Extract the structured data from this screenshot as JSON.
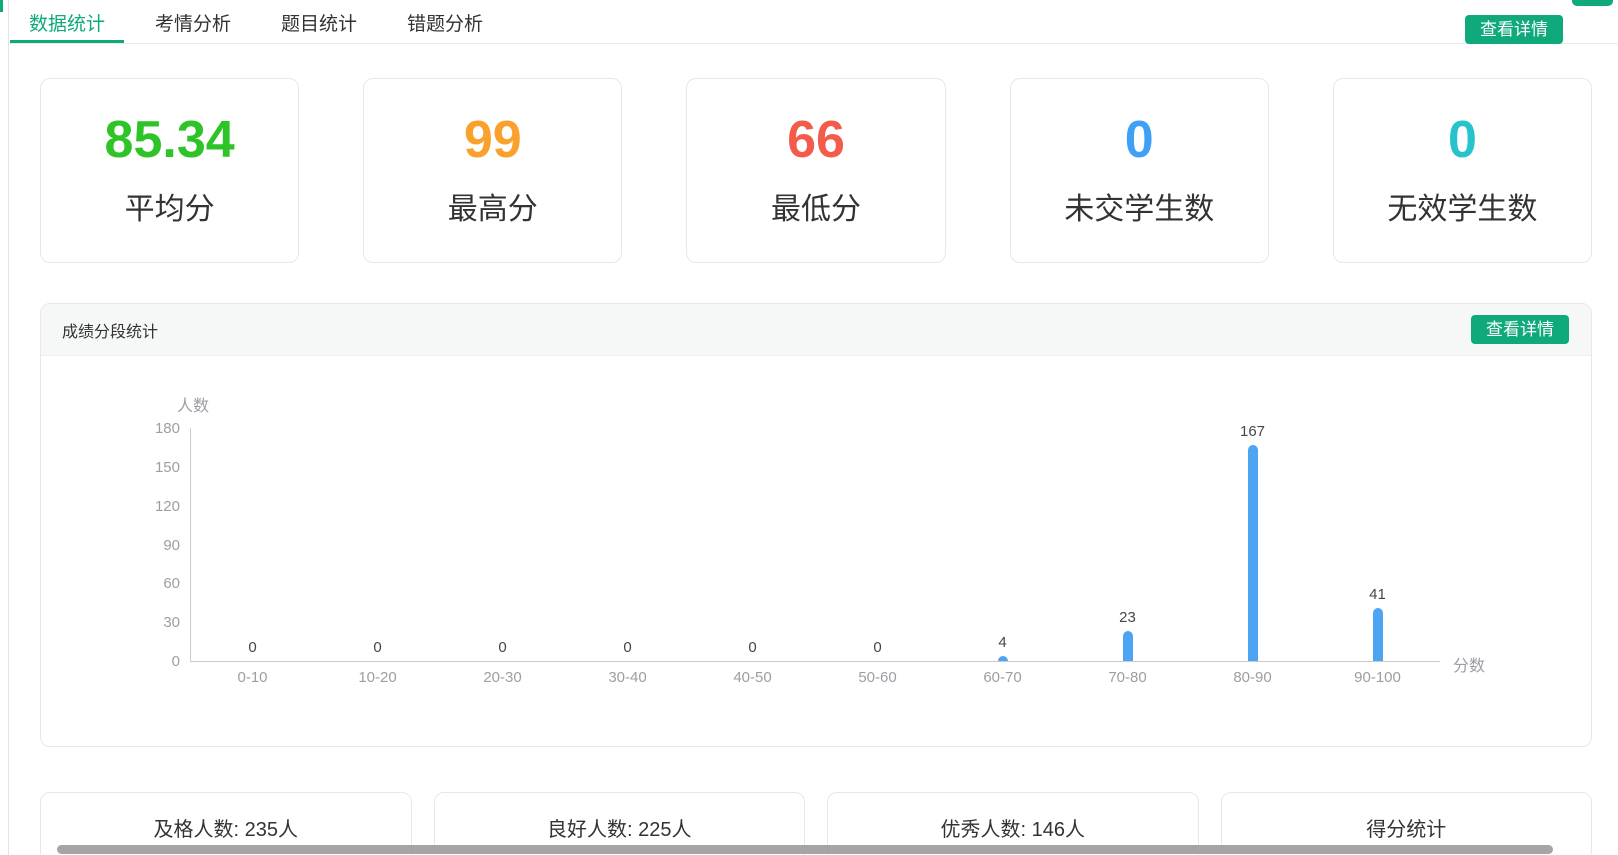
{
  "colors": {
    "accent_green": "#10A97C",
    "bar_blue": "#4DA4F2"
  },
  "tabs": [
    {
      "id": "data-statistics",
      "label": "数据统计",
      "active": true
    },
    {
      "id": "exam-analysis",
      "label": "考情分析",
      "active": false
    },
    {
      "id": "question-stats",
      "label": "题目统计",
      "active": false
    },
    {
      "id": "wrong-question-analysis",
      "label": "错题分析",
      "active": false
    }
  ],
  "header": {
    "view_details_label": "查看详情"
  },
  "stat_cards": [
    {
      "id": "average-score",
      "value": "85.34",
      "label": "平均分",
      "color": "#2EC327"
    },
    {
      "id": "highest-score",
      "value": "99",
      "label": "最高分",
      "color": "#FAA12D"
    },
    {
      "id": "lowest-score",
      "value": "66",
      "label": "最低分",
      "color": "#F35B4B"
    },
    {
      "id": "unsubmitted-students",
      "value": "0",
      "label": "未交学生数",
      "color": "#3FA0F8"
    },
    {
      "id": "invalid-students",
      "value": "0",
      "label": "无效学生数",
      "color": "#28C2CD"
    }
  ],
  "score_panel": {
    "title": "成绩分段统计",
    "view_details_label": "查看详情"
  },
  "chart_data": {
    "type": "bar",
    "title": "成绩分段统计",
    "categories": [
      "0-10",
      "10-20",
      "20-30",
      "30-40",
      "40-50",
      "50-60",
      "60-70",
      "70-80",
      "80-90",
      "90-100"
    ],
    "values": [
      0,
      0,
      0,
      0,
      0,
      0,
      4,
      23,
      167,
      41
    ],
    "xlabel": "分数",
    "ylabel": "人数",
    "ylim": [
      0,
      180
    ],
    "yticks": [
      0,
      30,
      60,
      90,
      120,
      150,
      180
    ],
    "grid": false,
    "legend": false,
    "bar_color": "#4DA4F2",
    "value_labels": true
  },
  "summary_cards": [
    {
      "id": "pass-count",
      "label": "及格人数: 235人"
    },
    {
      "id": "good-count",
      "label": "良好人数: 225人"
    },
    {
      "id": "excellent-count",
      "label": "优秀人数: 146人"
    },
    {
      "id": "score-statistics",
      "label": "得分统计"
    }
  ]
}
